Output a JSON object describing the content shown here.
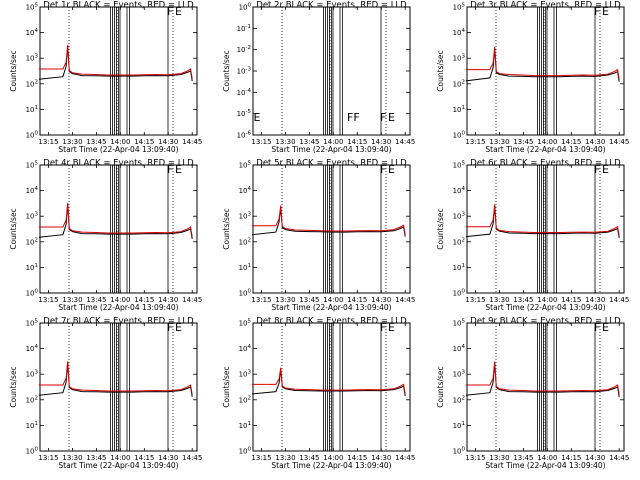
{
  "colors": {
    "events": "#000000",
    "lld": "#dd0000",
    "frame": "#000000"
  },
  "chart_data": [
    {
      "type": "line",
      "title": "Det 1r BLACK = Events, RED = LLD",
      "xlabel": "Start Time (22-Apr-04 13:09:40)",
      "ylabel": "Counts/sec",
      "xticks": [
        "13:15",
        "13:30",
        "13:45",
        "14:00",
        "14:15",
        "14:30",
        "14:45"
      ],
      "yticks": [
        "10^0",
        "10^1",
        "10^2",
        "10^3",
        "10^4",
        "10^5"
      ],
      "yscale": "log",
      "ylim": [
        1,
        100000
      ],
      "xlim": [
        "13:09:40",
        "14:48:00"
      ],
      "flags": [
        "F",
        "E"
      ],
      "has_data": true,
      "series": [
        {
          "name": "Events",
          "x": [
            "13:09",
            "13:24",
            "13:26",
            "13:27",
            "13:28",
            "13:30",
            "13:36",
            "13:45",
            "13:52",
            "14:00",
            "14:08",
            "14:15",
            "14:22",
            "14:30",
            "14:38",
            "14:42",
            "14:44",
            "14:45"
          ],
          "y": [
            150,
            190,
            480,
            3000,
            300,
            250,
            210,
            205,
            200,
            200,
            200,
            205,
            210,
            205,
            230,
            280,
            320,
            130
          ]
        },
        {
          "name": "LLD",
          "x": [
            "13:09",
            "13:24",
            "13:26",
            "13:27",
            "13:28",
            "13:30",
            "13:36",
            "13:45",
            "13:52",
            "14:00",
            "14:08",
            "14:15",
            "14:22",
            "14:30",
            "14:38",
            "14:42",
            "14:44",
            "14:45"
          ],
          "y": [
            380,
            380,
            700,
            3300,
            330,
            270,
            240,
            230,
            220,
            220,
            220,
            225,
            230,
            225,
            250,
            320,
            380,
            160
          ]
        }
      ]
    },
    {
      "type": "line",
      "title": "Det 2r BLACK = Events, RED = LLD",
      "xlabel": "Start Time (22-Apr-04 13:09:40)",
      "ylabel": "Counts/sec",
      "xticks": [
        "13:15",
        "13:30",
        "13:45",
        "14:00",
        "14:15",
        "14:30",
        "14:45"
      ],
      "yticks": [
        "10^-6",
        "10^-5",
        "10^-4",
        "10^-3",
        "10^-2",
        "10^-1",
        "10^0"
      ],
      "yscale": "log",
      "ylim": [
        1e-06,
        1
      ],
      "xlim": [
        "13:09:40",
        "14:48:00"
      ],
      "flags": [
        "F",
        "E"
      ],
      "has_data": false,
      "series": []
    },
    {
      "type": "line",
      "title": "Det 3r BLACK = Events, RED = LLD",
      "xlabel": "Start Time (22-Apr-04 13:09:40)",
      "ylabel": "Counts/sec",
      "xticks": [
        "13:15",
        "13:30",
        "13:45",
        "14:00",
        "14:15",
        "14:30",
        "14:45"
      ],
      "yticks": [
        "10^0",
        "10^1",
        "10^2",
        "10^3",
        "10^4",
        "10^5"
      ],
      "yscale": "log",
      "ylim": [
        1,
        100000
      ],
      "xlim": [
        "13:09:40",
        "14:48:00"
      ],
      "flags": [
        "F",
        "E"
      ],
      "has_data": true,
      "series": [
        {
          "name": "Events",
          "x": [
            "13:09",
            "13:24",
            "13:26",
            "13:27",
            "13:28",
            "13:30",
            "13:36",
            "13:45",
            "13:52",
            "14:00",
            "14:08",
            "14:15",
            "14:22",
            "14:30",
            "14:38",
            "14:42",
            "14:44",
            "14:45"
          ],
          "y": [
            130,
            170,
            420,
            2500,
            270,
            230,
            200,
            195,
            190,
            190,
            190,
            195,
            200,
            195,
            220,
            260,
            300,
            120
          ]
        },
        {
          "name": "LLD",
          "x": [
            "13:09",
            "13:24",
            "13:26",
            "13:27",
            "13:28",
            "13:30",
            "13:36",
            "13:45",
            "13:52",
            "14:00",
            "14:08",
            "14:15",
            "14:22",
            "14:30",
            "14:38",
            "14:42",
            "14:44",
            "14:45"
          ],
          "y": [
            360,
            360,
            650,
            2800,
            300,
            250,
            230,
            220,
            210,
            210,
            210,
            215,
            220,
            215,
            240,
            300,
            360,
            150
          ]
        }
      ]
    },
    {
      "type": "line",
      "title": "Det 4r BLACK = Events, RED = LLD",
      "xlabel": "Start Time (22-Apr-04 13:09:40)",
      "ylabel": "Counts/sec",
      "xticks": [
        "13:15",
        "13:30",
        "13:45",
        "14:00",
        "14:15",
        "14:30",
        "14:45"
      ],
      "yticks": [
        "10^0",
        "10^1",
        "10^2",
        "10^3",
        "10^4",
        "10^5"
      ],
      "yscale": "log",
      "ylim": [
        1,
        100000
      ],
      "xlim": [
        "13:09:40",
        "14:48:00"
      ],
      "flags": [
        "F",
        "E"
      ],
      "has_data": true,
      "series": [
        {
          "name": "Events",
          "x": [
            "13:09",
            "13:24",
            "13:26",
            "13:27",
            "13:28",
            "13:30",
            "13:36",
            "13:45",
            "13:52",
            "14:00",
            "14:08",
            "14:15",
            "14:22",
            "14:30",
            "14:38",
            "14:42",
            "14:44",
            "14:45"
          ],
          "y": [
            150,
            190,
            480,
            3000,
            300,
            250,
            210,
            205,
            200,
            200,
            200,
            205,
            210,
            205,
            230,
            280,
            320,
            130
          ]
        },
        {
          "name": "LLD",
          "x": [
            "13:09",
            "13:24",
            "13:26",
            "13:27",
            "13:28",
            "13:30",
            "13:36",
            "13:45",
            "13:52",
            "14:00",
            "14:08",
            "14:15",
            "14:22",
            "14:30",
            "14:38",
            "14:42",
            "14:44",
            "14:45"
          ],
          "y": [
            380,
            380,
            700,
            3300,
            330,
            270,
            240,
            230,
            220,
            220,
            220,
            225,
            230,
            225,
            250,
            320,
            380,
            160
          ]
        }
      ]
    },
    {
      "type": "line",
      "title": "Det 5r BLACK = Events, RED = LLD",
      "xlabel": "Start Time (22-Apr-04 13:09:40)",
      "ylabel": "Counts/sec",
      "xticks": [
        "13:15",
        "13:30",
        "13:45",
        "14:00",
        "14:15",
        "14:30",
        "14:45"
      ],
      "yticks": [
        "10^0",
        "10^1",
        "10^2",
        "10^3",
        "10^4",
        "10^5"
      ],
      "yscale": "log",
      "ylim": [
        1,
        100000
      ],
      "xlim": [
        "13:09:40",
        "14:48:00"
      ],
      "flags": [
        "F",
        "E"
      ],
      "has_data": true,
      "series": [
        {
          "name": "Events",
          "x": [
            "13:09",
            "13:24",
            "13:26",
            "13:27",
            "13:28",
            "13:30",
            "13:36",
            "13:45",
            "13:52",
            "14:00",
            "14:08",
            "14:15",
            "14:22",
            "14:30",
            "14:38",
            "14:42",
            "14:44",
            "14:45"
          ],
          "y": [
            190,
            240,
            600,
            2300,
            360,
            300,
            260,
            250,
            245,
            240,
            240,
            245,
            250,
            245,
            270,
            330,
            380,
            160
          ]
        },
        {
          "name": "LLD",
          "x": [
            "13:09",
            "13:24",
            "13:26",
            "13:27",
            "13:28",
            "13:30",
            "13:36",
            "13:45",
            "13:52",
            "14:00",
            "14:08",
            "14:15",
            "14:22",
            "14:30",
            "14:38",
            "14:42",
            "14:44",
            "14:45"
          ],
          "y": [
            420,
            420,
            800,
            2600,
            400,
            330,
            290,
            280,
            270,
            265,
            265,
            270,
            275,
            270,
            300,
            380,
            440,
            190
          ]
        }
      ]
    },
    {
      "type": "line",
      "title": "Det 6r BLACK = Events, RED = LLD",
      "xlabel": "Start Time (22-Apr-04 13:09:40)",
      "ylabel": "Counts/sec",
      "xticks": [
        "13:15",
        "13:30",
        "13:45",
        "14:00",
        "14:15",
        "14:30",
        "14:45"
      ],
      "yticks": [
        "10^0",
        "10^1",
        "10^2",
        "10^3",
        "10^4",
        "10^5"
      ],
      "yscale": "log",
      "ylim": [
        1,
        100000
      ],
      "xlim": [
        "13:09:40",
        "14:48:00"
      ],
      "flags": [
        "F",
        "E"
      ],
      "has_data": true,
      "series": [
        {
          "name": "Events",
          "x": [
            "13:09",
            "13:24",
            "13:26",
            "13:27",
            "13:28",
            "13:30",
            "13:36",
            "13:45",
            "13:52",
            "14:00",
            "14:08",
            "14:15",
            "14:22",
            "14:30",
            "14:38",
            "14:42",
            "14:44",
            "14:45"
          ],
          "y": [
            160,
            200,
            500,
            2600,
            310,
            260,
            220,
            215,
            210,
            210,
            210,
            215,
            220,
            215,
            240,
            290,
            330,
            140
          ]
        },
        {
          "name": "LLD",
          "x": [
            "13:09",
            "13:24",
            "13:26",
            "13:27",
            "13:28",
            "13:30",
            "13:36",
            "13:45",
            "13:52",
            "14:00",
            "14:08",
            "14:15",
            "14:22",
            "14:30",
            "14:38",
            "14:42",
            "14:44",
            "14:45"
          ],
          "y": [
            390,
            390,
            720,
            2900,
            340,
            280,
            250,
            240,
            230,
            230,
            230,
            235,
            240,
            235,
            260,
            330,
            390,
            170
          ]
        }
      ]
    },
    {
      "type": "line",
      "title": "Det 7r BLACK = Events, RED = LLD",
      "xlabel": "Start Time (22-Apr-04 13:09:40)",
      "ylabel": "Counts/sec",
      "xticks": [
        "13:15",
        "13:30",
        "13:45",
        "14:00",
        "14:15",
        "14:30",
        "14:45"
      ],
      "yticks": [
        "10^0",
        "10^1",
        "10^2",
        "10^3",
        "10^4",
        "10^5"
      ],
      "yscale": "log",
      "ylim": [
        1,
        100000
      ],
      "xlim": [
        "13:09:40",
        "14:48:00"
      ],
      "flags": [
        "F",
        "E"
      ],
      "has_data": true,
      "series": [
        {
          "name": "Events",
          "x": [
            "13:09",
            "13:24",
            "13:26",
            "13:27",
            "13:28",
            "13:30",
            "13:36",
            "13:45",
            "13:52",
            "14:00",
            "14:08",
            "14:15",
            "14:22",
            "14:30",
            "14:38",
            "14:42",
            "14:44",
            "14:45"
          ],
          "y": [
            150,
            190,
            480,
            2900,
            300,
            250,
            210,
            205,
            200,
            200,
            200,
            205,
            210,
            205,
            230,
            280,
            320,
            130
          ]
        },
        {
          "name": "LLD",
          "x": [
            "13:09",
            "13:24",
            "13:26",
            "13:27",
            "13:28",
            "13:30",
            "13:36",
            "13:45",
            "13:52",
            "14:00",
            "14:08",
            "14:15",
            "14:22",
            "14:30",
            "14:38",
            "14:42",
            "14:44",
            "14:45"
          ],
          "y": [
            380,
            380,
            700,
            3200,
            330,
            270,
            240,
            230,
            220,
            220,
            220,
            225,
            230,
            225,
            250,
            320,
            380,
            160
          ]
        }
      ]
    },
    {
      "type": "line",
      "title": "Det 8r BLACK = Events, RED = LLD",
      "xlabel": "Start Time (22-Apr-04 13:09:40)",
      "ylabel": "Counts/sec",
      "xticks": [
        "13:15",
        "13:30",
        "13:45",
        "14:00",
        "14:15",
        "14:30",
        "14:45"
      ],
      "yticks": [
        "10^0",
        "10^1",
        "10^2",
        "10^3",
        "10^4",
        "10^5"
      ],
      "yscale": "log",
      "ylim": [
        1,
        100000
      ],
      "xlim": [
        "13:09:40",
        "14:48:00"
      ],
      "flags": [
        "F",
        "E"
      ],
      "has_data": true,
      "series": [
        {
          "name": "Events",
          "x": [
            "13:09",
            "13:24",
            "13:26",
            "13:27",
            "13:28",
            "13:30",
            "13:36",
            "13:45",
            "13:52",
            "14:00",
            "14:08",
            "14:15",
            "14:22",
            "14:30",
            "14:38",
            "14:42",
            "14:44",
            "14:45"
          ],
          "y": [
            170,
            210,
            450,
            1600,
            320,
            270,
            230,
            225,
            220,
            220,
            220,
            225,
            230,
            225,
            250,
            300,
            340,
            140
          ]
        },
        {
          "name": "LLD",
          "x": [
            "13:09",
            "13:24",
            "13:26",
            "13:27",
            "13:28",
            "13:30",
            "13:36",
            "13:45",
            "13:52",
            "14:00",
            "14:08",
            "14:15",
            "14:22",
            "14:30",
            "14:38",
            "14:42",
            "14:44",
            "14:45"
          ],
          "y": [
            400,
            400,
            650,
            1800,
            350,
            290,
            260,
            250,
            240,
            240,
            240,
            245,
            250,
            245,
            270,
            340,
            400,
            170
          ]
        }
      ]
    },
    {
      "type": "line",
      "title": "Det 9r BLACK = Events, RED = LLD",
      "xlabel": "Start Time (22-Apr-04 13:09:40)",
      "ylabel": "Counts/sec",
      "xticks": [
        "13:15",
        "13:30",
        "13:45",
        "14:00",
        "14:15",
        "14:30",
        "14:45"
      ],
      "yticks": [
        "10^0",
        "10^1",
        "10^2",
        "10^3",
        "10^4",
        "10^5"
      ],
      "yscale": "log",
      "ylim": [
        1,
        100000
      ],
      "xlim": [
        "13:09:40",
        "14:48:00"
      ],
      "flags": [
        "F",
        "E"
      ],
      "has_data": true,
      "series": [
        {
          "name": "Events",
          "x": [
            "13:09",
            "13:24",
            "13:26",
            "13:27",
            "13:28",
            "13:30",
            "13:36",
            "13:45",
            "13:52",
            "14:00",
            "14:08",
            "14:15",
            "14:22",
            "14:30",
            "14:38",
            "14:42",
            "14:44",
            "14:45"
          ],
          "y": [
            150,
            190,
            480,
            2800,
            300,
            250,
            210,
            205,
            200,
            200,
            200,
            205,
            210,
            205,
            230,
            280,
            320,
            130
          ]
        },
        {
          "name": "LLD",
          "x": [
            "13:09",
            "13:24",
            "13:26",
            "13:27",
            "13:28",
            "13:30",
            "13:36",
            "13:45",
            "13:52",
            "14:00",
            "14:08",
            "14:15",
            "14:22",
            "14:30",
            "14:38",
            "14:42",
            "14:44",
            "14:45"
          ],
          "y": [
            380,
            380,
            700,
            3100,
            330,
            270,
            240,
            230,
            220,
            220,
            220,
            225,
            230,
            225,
            250,
            320,
            380,
            160
          ]
        }
      ]
    }
  ]
}
